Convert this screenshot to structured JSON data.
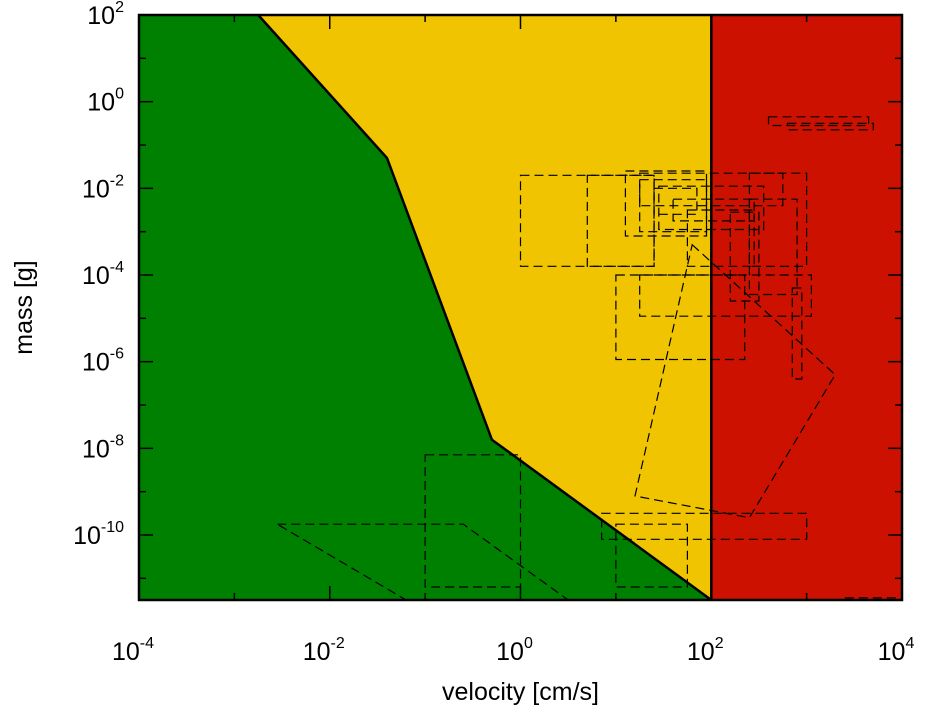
{
  "chart_data": {
    "type": "area",
    "title": "",
    "xlabel": "velocity [cm/s]",
    "ylabel": "mass [g]",
    "xscale": "log",
    "yscale": "log",
    "xlim_log10": [
      -4,
      4
    ],
    "ylim_log10": [
      -11.5,
      2
    ],
    "x_ticks": [
      {
        "base": "10",
        "exp": "-4"
      },
      {
        "base": "10",
        "exp": "-2"
      },
      {
        "base": "10",
        "exp": "0"
      },
      {
        "base": "10",
        "exp": "2"
      },
      {
        "base": "10",
        "exp": "4"
      }
    ],
    "y_ticks": [
      {
        "base": "10",
        "exp": "2"
      },
      {
        "base": "10",
        "exp": "0"
      },
      {
        "base": "10",
        "exp": "-2"
      },
      {
        "base": "10",
        "exp": "-4"
      },
      {
        "base": "10",
        "exp": "-6"
      },
      {
        "base": "10",
        "exp": "-8"
      },
      {
        "base": "10",
        "exp": "-10"
      }
    ],
    "regions": [
      {
        "id": "green-region",
        "color": "#008000",
        "boundary_log10": [
          [
            -4,
            -11.5
          ],
          [
            -4,
            2
          ],
          [
            -2.75,
            2
          ],
          [
            -1.4,
            -1.3
          ],
          [
            -0.3,
            -7.8
          ],
          [
            2,
            -11.5
          ]
        ]
      },
      {
        "id": "yellow-region",
        "color": "#f0c400",
        "boundary_log10": [
          [
            -2.75,
            2
          ],
          [
            2,
            2
          ],
          [
            2,
            -11.5
          ],
          [
            -0.3,
            -7.8
          ],
          [
            -1.4,
            -1.3
          ]
        ]
      },
      {
        "id": "red-region",
        "color": "#cc1100",
        "boundary_log10": [
          [
            2,
            -11.5
          ],
          [
            2,
            2
          ],
          [
            4,
            2
          ],
          [
            4,
            -11.5
          ]
        ]
      }
    ],
    "boundaries": [
      {
        "id": "diagonal-boundary",
        "points_log10": [
          [
            -2.75,
            2
          ],
          [
            -1.4,
            -1.3
          ],
          [
            -0.3,
            -7.8
          ],
          [
            2,
            -11.5
          ]
        ]
      },
      {
        "id": "vertical-boundary",
        "points_log10": [
          [
            2,
            -11.5
          ],
          [
            2,
            2
          ]
        ]
      }
    ],
    "boxes_log10": [
      {
        "x": [
          0,
          1.4
        ],
        "y": [
          -3.8,
          -1.7
        ]
      },
      {
        "x": [
          0.7,
          1.4
        ],
        "y": [
          -3.8,
          -1.7
        ]
      },
      {
        "x": [
          1.1,
          1.95
        ],
        "y": [
          -3.1,
          -1.6
        ]
      },
      {
        "x": [
          1.25,
          1.95
        ],
        "y": [
          -3,
          -1.8
        ]
      },
      {
        "x": [
          1.4,
          1.85
        ],
        "y": [
          -2.6,
          -2
        ]
      },
      {
        "x": [
          1.25,
          2.75
        ],
        "y": [
          -2.4,
          -1.65
        ]
      },
      {
        "x": [
          1.45,
          2.55
        ],
        "y": [
          -2.95,
          -1.95
        ]
      },
      {
        "x": [
          1.6,
          2.45
        ],
        "y": [
          -2.75,
          -2.25
        ]
      },
      {
        "x": [
          2.4,
          3
        ],
        "y": [
          -3.8,
          -1.65
        ]
      },
      {
        "x": [
          1.75,
          2.45
        ],
        "y": [
          -3.8,
          -2.5
        ]
      },
      {
        "x": [
          1,
          2.35
        ],
        "y": [
          -5.95,
          -4
        ]
      },
      {
        "x": [
          1.25,
          3.05
        ],
        "y": [
          -4.95,
          -4
        ]
      },
      {
        "x": [
          2.2,
          2.5
        ],
        "y": [
          -4.6,
          -2.55
        ]
      },
      {
        "x": [
          2.4,
          2.9
        ],
        "y": [
          -4.45,
          -2.25
        ]
      },
      {
        "x": [
          2.85,
          2.95
        ],
        "y": [
          -6.4,
          -4.3
        ]
      },
      {
        "x": [
          2.6,
          3.65
        ],
        "y": [
          -0.55,
          -0.35
        ]
      },
      {
        "x": [
          2.8,
          3.7
        ],
        "y": [
          -0.65,
          -0.5
        ]
      },
      {
        "x": [
          -1,
          0
        ],
        "y": [
          -11.2,
          -8.15
        ]
      },
      {
        "x": [
          0.85,
          3
        ],
        "y": [
          -10.1,
          -9.5
        ]
      },
      {
        "x": [
          1,
          1.75
        ],
        "y": [
          -11.2,
          -9.75
        ]
      },
      {
        "x": [
          3.4,
          3.95
        ],
        "y": [
          -11.5,
          -11.45
        ]
      }
    ],
    "polygons_log10": [
      {
        "points": [
          [
            1.8,
            -3.3
          ],
          [
            3.3,
            -6.3
          ],
          [
            2.4,
            -9.6
          ],
          [
            1.2,
            -9.1
          ]
        ]
      },
      {
        "points": [
          [
            -2.55,
            -9.75
          ],
          [
            -0.6,
            -9.75
          ],
          [
            0.5,
            -11.5
          ],
          [
            -1.2,
            -11.5
          ]
        ]
      }
    ]
  }
}
